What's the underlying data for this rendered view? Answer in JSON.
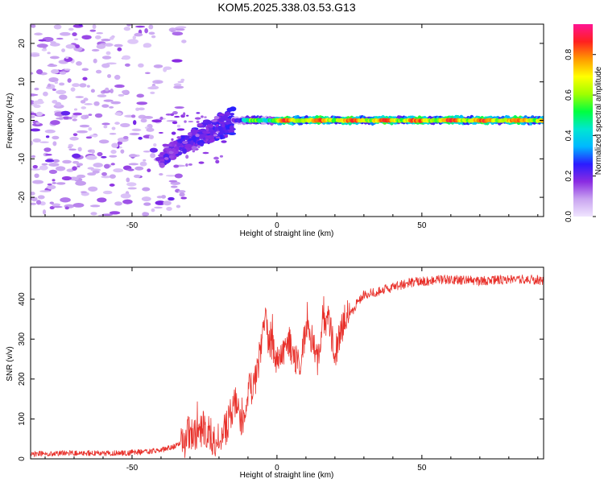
{
  "figure": {
    "title": "KOM5.2025.338.03.53.G13"
  },
  "chart_data": [
    {
      "type": "heatmap",
      "title": "KOM5.2025.338.03.53.G13",
      "xlabel": "Height of straight line (km)",
      "ylabel": "Frequency (Hz)",
      "xlim": [
        -85,
        92
      ],
      "ylim": [
        -25,
        25
      ],
      "xticks": [
        -50,
        0,
        50
      ],
      "yticks": [
        -20,
        -10,
        0,
        10,
        20
      ],
      "colorbar": {
        "label": "Normalized spectral amplitude",
        "range": [
          0,
          0.95
        ],
        "ticks": [
          0.0,
          0.2,
          0.4,
          0.6,
          0.8
        ],
        "stops": [
          "#f0e6ff",
          "#c9a4f0",
          "#8a2be2",
          "#2a1cff",
          "#00b8ff",
          "#00e6d2",
          "#00ff40",
          "#a0ff00",
          "#ffff00",
          "#ff9a00",
          "#ff2020",
          "#ff1493"
        ]
      },
      "features": {
        "noise_region_x": [
          -85,
          -38
        ],
        "chirp": {
          "x_start": -40,
          "x_end": -15,
          "freq_start": -11,
          "freq_end": 0
        },
        "line": {
          "x_start": -15,
          "x_end": 92,
          "freq": 0
        }
      }
    },
    {
      "type": "line",
      "xlabel": "Height of straight line (km)",
      "ylabel": "SNR (v/v)",
      "xlim": [
        -85,
        92
      ],
      "ylim": [
        0,
        480
      ],
      "xticks": [
        -50,
        0,
        50
      ],
      "yticks": [
        0,
        100,
        200,
        300,
        400
      ],
      "series": [
        {
          "name": "SNR",
          "color": "#e8302a",
          "x": [
            -85,
            -70,
            -55,
            -45,
            -40,
            -35,
            -32,
            -30,
            -28,
            -25,
            -22,
            -20,
            -18,
            -16,
            -14,
            -12,
            -10,
            -8,
            -6,
            -5,
            -4,
            -3,
            -2,
            0,
            2,
            4,
            6,
            8,
            10,
            12,
            14,
            16,
            18,
            20,
            22,
            24,
            26,
            28,
            30,
            35,
            40,
            45,
            50,
            60,
            70,
            80,
            92
          ],
          "values": [
            12,
            15,
            14,
            18,
            22,
            32,
            45,
            70,
            60,
            80,
            50,
            30,
            70,
            110,
            150,
            60,
            170,
            180,
            240,
            330,
            360,
            300,
            290,
            250,
            260,
            300,
            250,
            240,
            320,
            300,
            240,
            340,
            350,
            260,
            320,
            360,
            370,
            395,
            410,
            420,
            430,
            440,
            445,
            450,
            445,
            450,
            448
          ]
        }
      ]
    }
  ]
}
